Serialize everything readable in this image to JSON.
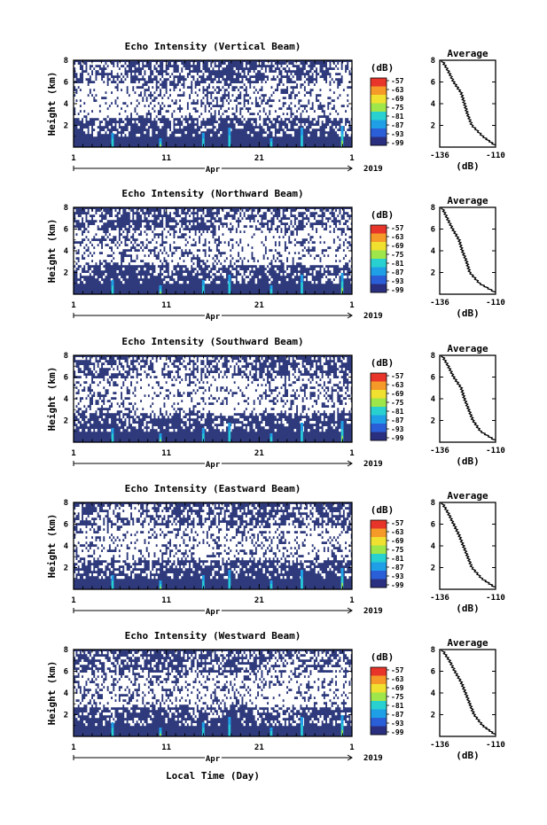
{
  "figure": {
    "xlabel": "Local Time (Day)",
    "month_label": "Apr",
    "year_label": "2019"
  },
  "chart_data": [
    {
      "type": "heatmap",
      "title": "Echo Intensity (Vertical Beam)",
      "ylabel": "Height (km)",
      "x_ticks": [
        "1",
        "11",
        "21",
        "1"
      ],
      "y_ticks": [
        "2",
        "4",
        "6",
        "8"
      ],
      "ylim": [
        0,
        8
      ],
      "colorbar": {
        "unit": "(dB)",
        "ticks": [
          "-57",
          "-63",
          "-69",
          "-75",
          "-81",
          "-87",
          "-93",
          "-99"
        ]
      },
      "profile": {
        "title": "Average",
        "xlabel": "(dB)",
        "x_ticks": [
          "-136",
          "-110"
        ],
        "y_ticks": [
          "2",
          "4",
          "6",
          "8"
        ],
        "xlim": [
          -136,
          -110
        ],
        "height_km": [
          0.2,
          1,
          2,
          3,
          4,
          5,
          6,
          7,
          8
        ],
        "values_db": [
          -110.5,
          -116,
          -121,
          -123,
          -124.5,
          -126,
          -129.5,
          -132,
          -135
        ]
      }
    },
    {
      "type": "heatmap",
      "title": "Echo Intensity (Northward Beam)",
      "ylabel": "Height (km)",
      "x_ticks": [
        "1",
        "11",
        "21",
        "1"
      ],
      "y_ticks": [
        "2",
        "4",
        "6",
        "8"
      ],
      "ylim": [
        0,
        8
      ],
      "colorbar": {
        "unit": "(dB)",
        "ticks": [
          "-57",
          "-63",
          "-69",
          "-75",
          "-81",
          "-87",
          "-93",
          "-99"
        ]
      },
      "profile": {
        "title": "Average",
        "xlabel": "(dB)",
        "x_ticks": [
          "-136",
          "-110"
        ],
        "y_ticks": [
          "2",
          "4",
          "6",
          "8"
        ],
        "xlim": [
          -136,
          -110
        ],
        "height_km": [
          0.2,
          1,
          2,
          3,
          4,
          5,
          6,
          7,
          8
        ],
        "values_db": [
          -110.5,
          -117.5,
          -122,
          -123.5,
          -125.5,
          -127,
          -130,
          -132.5,
          -135
        ]
      }
    },
    {
      "type": "heatmap",
      "title": "Echo Intensity (Southward Beam)",
      "ylabel": "Height (km)",
      "x_ticks": [
        "1",
        "11",
        "21",
        "1"
      ],
      "y_ticks": [
        "2",
        "4",
        "6",
        "8"
      ],
      "ylim": [
        0,
        8
      ],
      "colorbar": {
        "unit": "(dB)",
        "ticks": [
          "-57",
          "-63",
          "-69",
          "-75",
          "-81",
          "-87",
          "-93",
          "-99"
        ]
      },
      "profile": {
        "title": "Average",
        "xlabel": "(dB)",
        "x_ticks": [
          "-136",
          "-110"
        ],
        "y_ticks": [
          "2",
          "4",
          "6",
          "8"
        ],
        "xlim": [
          -136,
          -110
        ],
        "height_km": [
          0.2,
          1,
          2,
          3,
          4,
          5,
          6,
          7,
          8
        ],
        "values_db": [
          -110.5,
          -117,
          -120.5,
          -122.5,
          -124.5,
          -126,
          -129.5,
          -132,
          -135
        ]
      }
    },
    {
      "type": "heatmap",
      "title": "Echo Intensity (Eastward Beam)",
      "ylabel": "Height (km)",
      "x_ticks": [
        "1",
        "11",
        "21",
        "1"
      ],
      "y_ticks": [
        "2",
        "4",
        "6",
        "8"
      ],
      "ylim": [
        0,
        8
      ],
      "colorbar": {
        "unit": "(dB)",
        "ticks": [
          "-57",
          "-63",
          "-69",
          "-75",
          "-81",
          "-87",
          "-93",
          "-99"
        ]
      },
      "profile": {
        "title": "Average",
        "xlabel": "(dB)",
        "x_ticks": [
          "-136",
          "-110"
        ],
        "y_ticks": [
          "2",
          "4",
          "6",
          "8"
        ],
        "xlim": [
          -136,
          -110
        ],
        "height_km": [
          0.2,
          1,
          2,
          3,
          4,
          5,
          6,
          7,
          8
        ],
        "values_db": [
          -110.5,
          -116.5,
          -121,
          -123,
          -125,
          -127,
          -129.5,
          -132,
          -135
        ]
      }
    },
    {
      "type": "heatmap",
      "title": "Echo Intensity (Westward Beam)",
      "ylabel": "Height (km)",
      "x_ticks": [
        "1",
        "11",
        "21",
        "1"
      ],
      "y_ticks": [
        "2",
        "4",
        "6",
        "8"
      ],
      "ylim": [
        0,
        8
      ],
      "colorbar": {
        "unit": "(dB)",
        "ticks": [
          "-57",
          "-63",
          "-69",
          "-75",
          "-81",
          "-87",
          "-93",
          "-99"
        ]
      },
      "profile": {
        "title": "Average",
        "xlabel": "(dB)",
        "x_ticks": [
          "-136",
          "-110"
        ],
        "y_ticks": [
          "2",
          "4",
          "6",
          "8"
        ],
        "xlim": [
          -136,
          -110
        ],
        "height_km": [
          0.2,
          1,
          2,
          3,
          4,
          5,
          6,
          7,
          8
        ],
        "values_db": [
          -110.5,
          -116,
          -120,
          -122,
          -124,
          -126,
          -129,
          -131.5,
          -135
        ]
      }
    }
  ],
  "colors": {
    "background_echo": "#2e3a7c",
    "no_data": "#ffffff",
    "colormap": [
      "#2b2f7f",
      "#2b5fd8",
      "#1f9fe6",
      "#28d0d0",
      "#9ee64a",
      "#f0e030",
      "#f59a28",
      "#e8352a"
    ]
  }
}
